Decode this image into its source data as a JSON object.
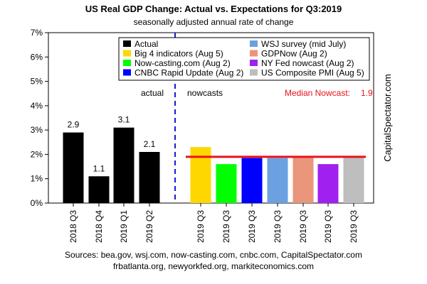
{
  "chart_data": {
    "type": "bar",
    "title": "US Real GDP Change: Actual vs. Expectations for Q3:2019",
    "subtitle": "seasonally adjusted annual rate of change",
    "ylim": [
      0,
      7
    ],
    "yticks": [
      "0%",
      "1%",
      "2%",
      "3%",
      "4%",
      "5%",
      "6%",
      "7%"
    ],
    "grid": false,
    "sections": {
      "left": "actual",
      "right": "nowcasts"
    },
    "median": {
      "label": "Median Nowcast:",
      "value": 1.9,
      "display": "1.9",
      "color": "#e8121a"
    },
    "watermark": "CapitalSpectator.com",
    "legend": {
      "placement": "top-right"
    },
    "actual": [
      {
        "category": "2018 Q3",
        "value": 2.9,
        "label": "2.9"
      },
      {
        "category": "2018 Q4",
        "value": 1.1,
        "label": "1.1"
      },
      {
        "category": "2019 Q1",
        "value": 3.1,
        "label": "3.1"
      },
      {
        "category": "2019 Q2",
        "value": 2.1,
        "label": "2.1"
      }
    ],
    "actual_color": "#000000",
    "nowcasts": [
      {
        "category": "2019 Q3",
        "series": "Big 4 indicators (Aug 5)",
        "value": 2.3,
        "color": "#ffd700"
      },
      {
        "category": "2019 Q3",
        "series": "Now-casting.com (Aug 2)",
        "value": 1.6,
        "color": "#00ff00"
      },
      {
        "category": "2019 Q3",
        "series": "CNBC Rapid Update (Aug 2)",
        "value": 1.85,
        "color": "#0000ff"
      },
      {
        "category": "2019 Q3",
        "series": "WSJ survey (mid July)",
        "value": 1.85,
        "color": "#6ba1e0"
      },
      {
        "category": "2019 Q3",
        "series": "GDPNow (Aug 2)",
        "value": 1.9,
        "color": "#e9967a"
      },
      {
        "category": "2019 Q3",
        "series": "NY Fed nowcast (Aug 2)",
        "value": 1.6,
        "color": "#a020f0"
      },
      {
        "category": "2019 Q3",
        "series": "US Composite PMI (Aug 5)",
        "value": 1.9,
        "color": "#bebebe"
      }
    ],
    "legend_entries": [
      {
        "name": "Actual",
        "color": "#000000"
      },
      {
        "name": "Big 4 indicators (Aug 5)",
        "color": "#ffd700"
      },
      {
        "name": "Now-casting.com (Aug 2)",
        "color": "#00ff00"
      },
      {
        "name": "CNBC Rapid Update (Aug 2)",
        "color": "#0000ff"
      },
      {
        "name": "WSJ survey (mid July)",
        "color": "#6ba1e0"
      },
      {
        "name": "GDPNow (Aug 2)",
        "color": "#e9967a"
      },
      {
        "name": "NY Fed nowcast (Aug 2)",
        "color": "#a020f0"
      },
      {
        "name": "US Composite PMI (Aug 5)",
        "color": "#bebebe"
      }
    ]
  },
  "sources": {
    "line1": "Sources: bea.gov, wsj.com, now-casting.com, cnbc.com, CapitalSpectator.com",
    "line2": "frbatlanta.org, newyorkfed.org, markiteconomics.com"
  }
}
